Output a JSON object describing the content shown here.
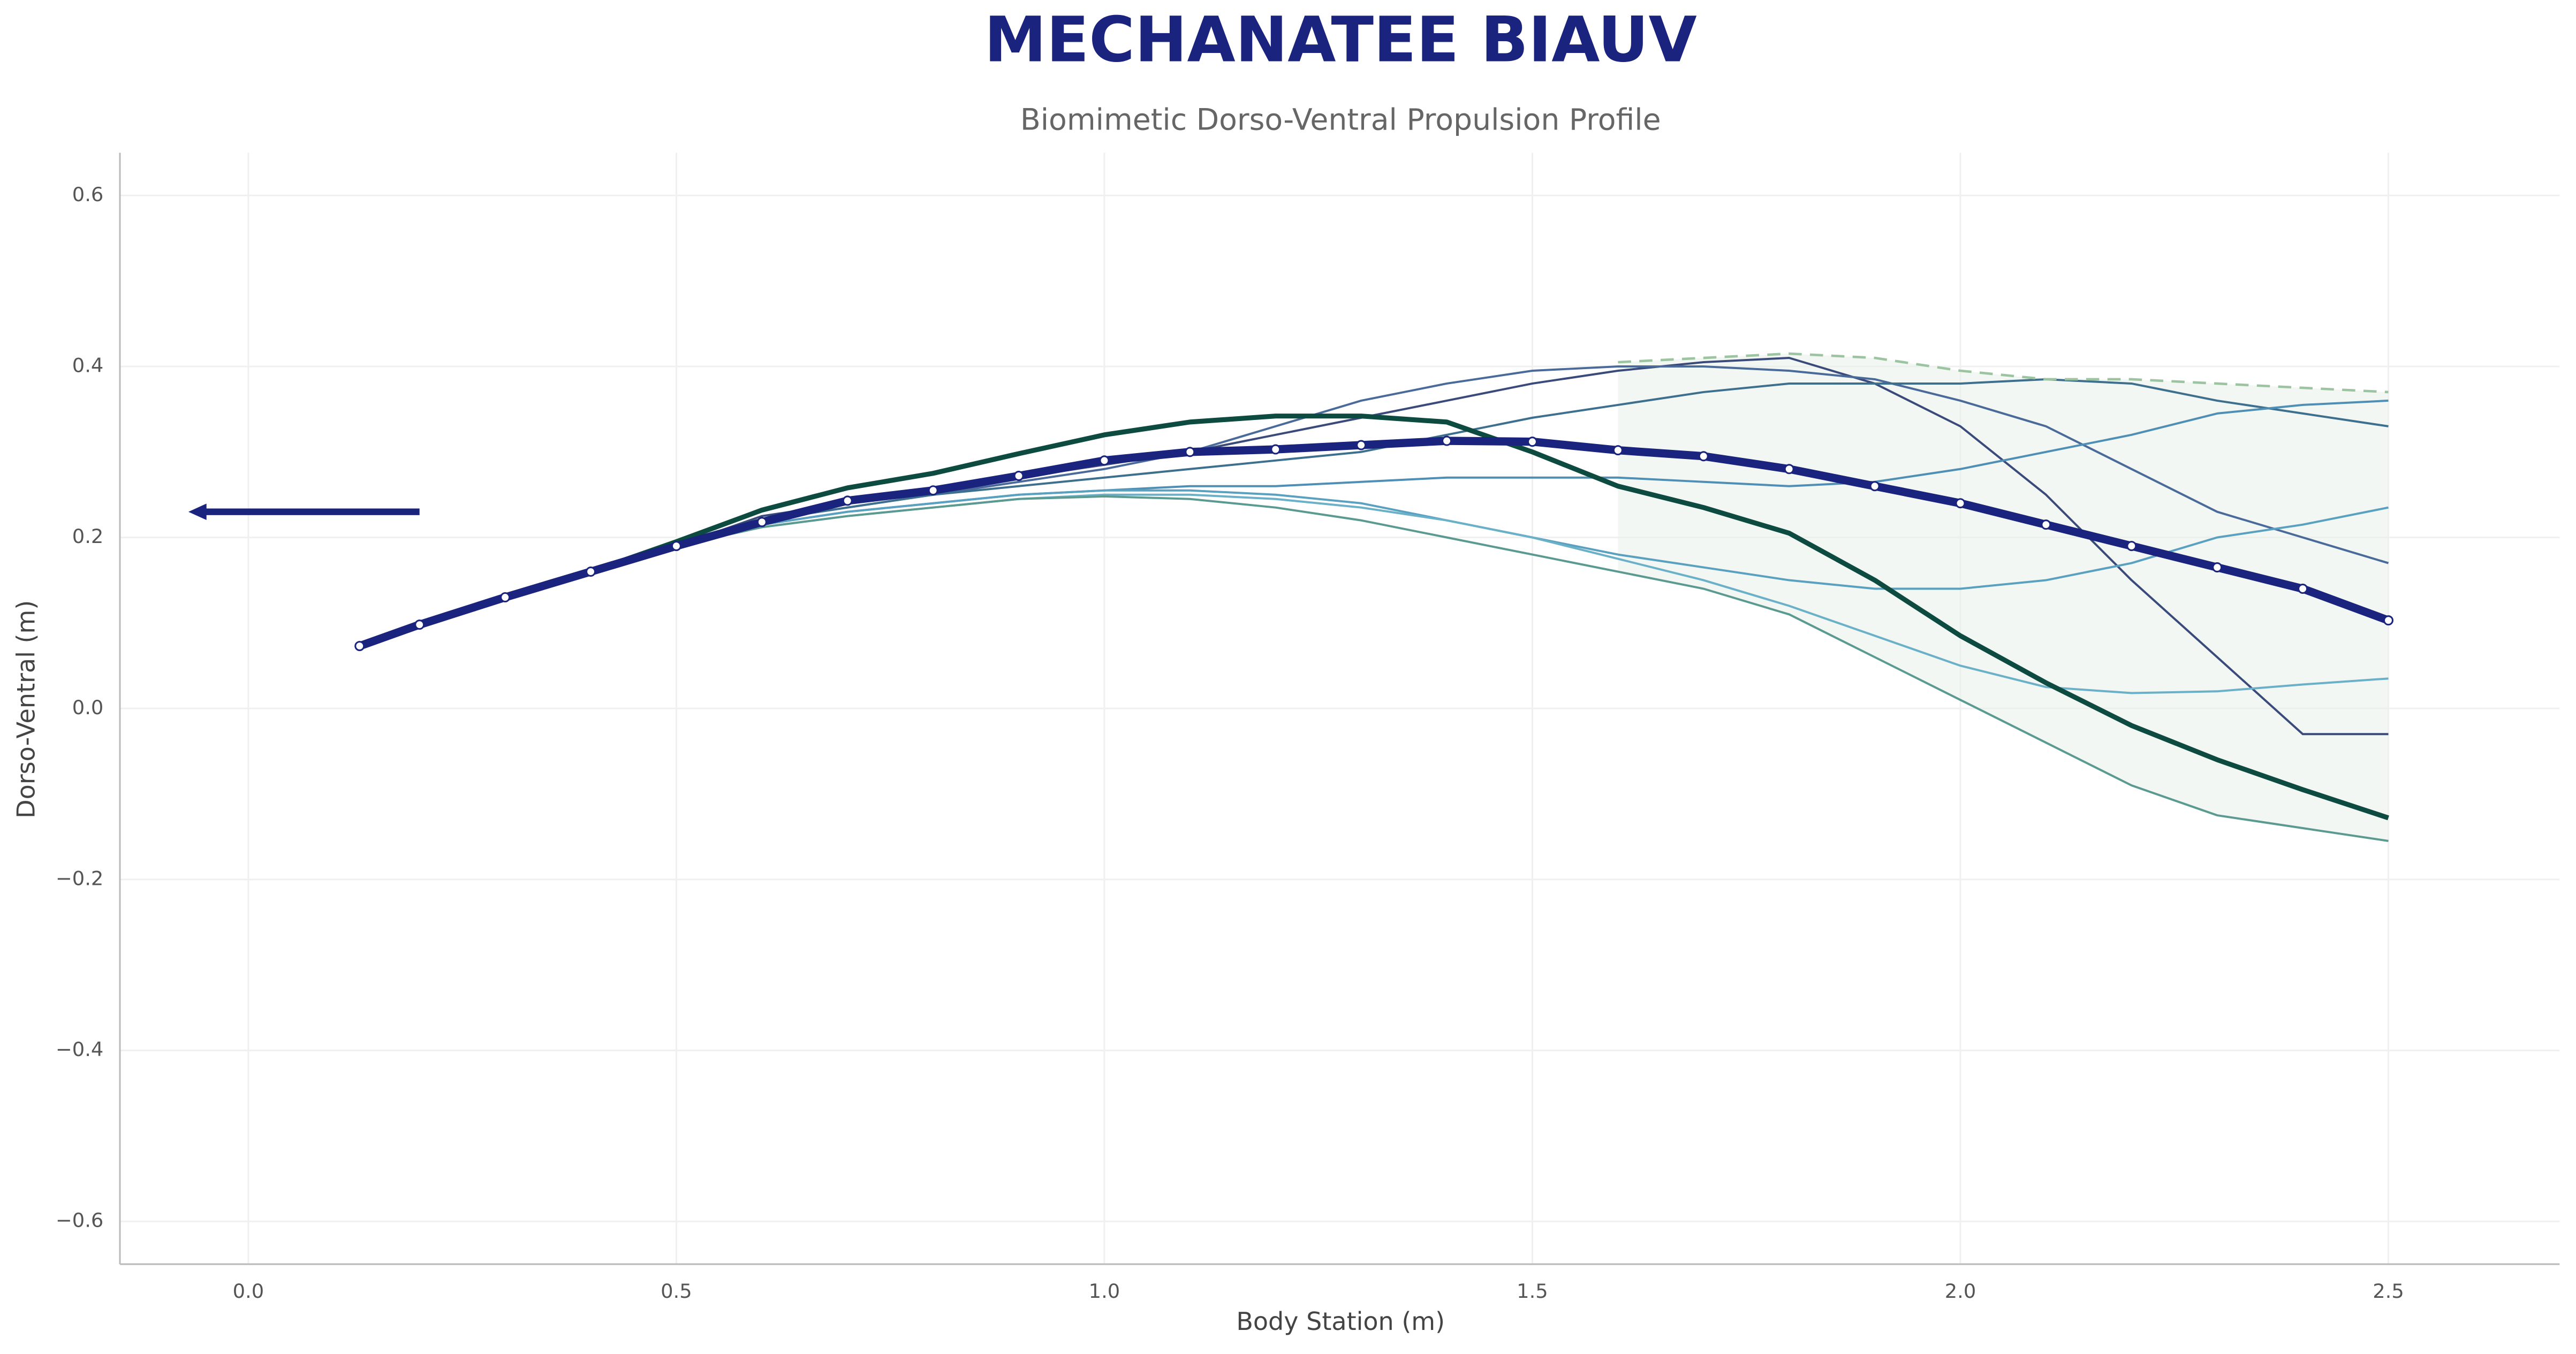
{
  "chart_data": {
    "type": "line",
    "title": "MECHANATEE BIAUV",
    "subtitle": "Biomimetic Dorso-Ventral Propulsion Profile",
    "x_label": "Body Station (m)",
    "y_label": "Dorso-Ventral (m)",
    "xlim": [
      -0.15,
      2.7
    ],
    "ylim": [
      -0.65,
      0.65
    ],
    "xticks": [
      {
        "value": 0,
        "label": "0.0"
      },
      0.5,
      {
        "value": 1,
        "label": "1.0"
      },
      1.5,
      {
        "value": 2,
        "label": "2.0"
      },
      2.5
    ],
    "yticks": [
      {
        "value": -0.6,
        "label": "−0.6"
      },
      {
        "value": -0.4,
        "label": "−0.4"
      },
      {
        "value": -0.2,
        "label": "−0.2"
      },
      {
        "value": 0,
        "label": "0.0"
      },
      0.2,
      0.4,
      0.6
    ],
    "grid": true,
    "x": [
      0.13,
      0.2,
      0.3,
      0.4,
      0.5,
      0.6,
      0.7,
      0.8,
      0.9,
      1.0,
      1.1,
      1.2,
      1.3,
      1.4,
      1.5,
      1.6,
      1.7,
      1.8,
      1.9,
      2.0,
      2.1,
      2.2,
      2.3,
      2.4,
      2.5
    ],
    "series": [
      {
        "color": "#3a4a7a",
        "width": 1.3,
        "values": [
          null,
          null,
          null,
          null,
          0.19,
          0.225,
          0.24,
          0.255,
          0.27,
          0.285,
          0.3,
          0.32,
          0.34,
          0.36,
          0.38,
          0.395,
          0.405,
          0.41,
          0.38,
          0.33,
          0.25,
          0.15,
          0.06,
          -0.03,
          -0.03
        ]
      },
      {
        "color": "#4a6a9a",
        "width": 1.3,
        "values": [
          null,
          null,
          null,
          null,
          0.19,
          0.22,
          0.235,
          0.25,
          0.265,
          0.28,
          0.3,
          0.33,
          0.36,
          0.38,
          0.395,
          0.4,
          0.4,
          0.395,
          0.385,
          0.36,
          0.33,
          0.28,
          0.23,
          0.2,
          0.17
        ]
      },
      {
        "color": "#3d6f8f",
        "width": 1.3,
        "values": [
          null,
          null,
          null,
          null,
          0.19,
          0.22,
          0.235,
          0.25,
          0.26,
          0.27,
          0.28,
          0.29,
          0.3,
          0.32,
          0.34,
          0.355,
          0.37,
          0.38,
          0.38,
          0.38,
          0.385,
          0.38,
          0.36,
          0.345,
          0.33
        ]
      },
      {
        "color": "#4f8fb5",
        "width": 1.3,
        "values": [
          null,
          null,
          null,
          null,
          0.19,
          0.215,
          0.23,
          0.24,
          0.25,
          0.255,
          0.26,
          0.26,
          0.265,
          0.27,
          0.27,
          0.27,
          0.265,
          0.26,
          0.265,
          0.28,
          0.3,
          0.32,
          0.345,
          0.355,
          0.36
        ]
      },
      {
        "color": "#5aa0c0",
        "width": 1.3,
        "values": [
          null,
          null,
          null,
          null,
          0.19,
          0.215,
          0.23,
          0.24,
          0.25,
          0.255,
          0.255,
          0.25,
          0.24,
          0.22,
          0.2,
          0.18,
          0.165,
          0.15,
          0.14,
          0.14,
          0.15,
          0.17,
          0.2,
          0.215,
          0.235
        ]
      },
      {
        "color": "#6ab0c8",
        "width": 1.3,
        "values": [
          null,
          null,
          null,
          null,
          0.19,
          0.212,
          0.225,
          0.235,
          0.245,
          0.25,
          0.25,
          0.245,
          0.235,
          0.22,
          0.2,
          0.175,
          0.15,
          0.12,
          0.085,
          0.05,
          0.025,
          0.018,
          0.02,
          0.028,
          0.035
        ]
      },
      {
        "color": "#5a9a90",
        "width": 1.3,
        "values": [
          null,
          null,
          null,
          null,
          0.19,
          0.212,
          0.225,
          0.235,
          0.245,
          0.248,
          0.245,
          0.235,
          0.22,
          0.2,
          0.18,
          0.16,
          0.14,
          0.11,
          0.06,
          0.01,
          -0.04,
          -0.09,
          -0.125,
          -0.14,
          -0.155
        ]
      },
      {
        "color": "#9cc4a0",
        "width": 1.5,
        "dashed": true,
        "values": [
          null,
          null,
          null,
          null,
          null,
          null,
          null,
          null,
          null,
          null,
          null,
          null,
          null,
          null,
          null,
          0.405,
          0.41,
          0.415,
          0.41,
          0.395,
          0.385,
          0.385,
          0.38,
          0.375,
          0.37
        ]
      },
      {
        "color": "#0d4a40",
        "width": 3,
        "values": [
          null,
          null,
          0.13,
          0.16,
          0.195,
          0.232,
          0.258,
          0.275,
          0.298,
          0.32,
          0.335,
          0.342,
          0.342,
          0.335,
          0.3,
          0.26,
          0.235,
          0.205,
          0.15,
          0.085,
          0.03,
          -0.02,
          -0.06,
          -0.095,
          -0.128
        ]
      },
      {
        "color": "#1a237e",
        "width": 5,
        "markers": true,
        "values": [
          0.073,
          0.098,
          0.13,
          0.16,
          0.19,
          0.218,
          0.243,
          0.255,
          0.272,
          0.29,
          0.3,
          0.303,
          0.308,
          0.313,
          0.312,
          0.302,
          0.295,
          0.28,
          0.26,
          0.24,
          0.215,
          0.19,
          0.165,
          0.14,
          0.103
        ]
      }
    ],
    "arrow": {
      "color": "#1a237e",
      "x": [
        0.2,
        -0.07
      ],
      "y": 0.23
    }
  }
}
